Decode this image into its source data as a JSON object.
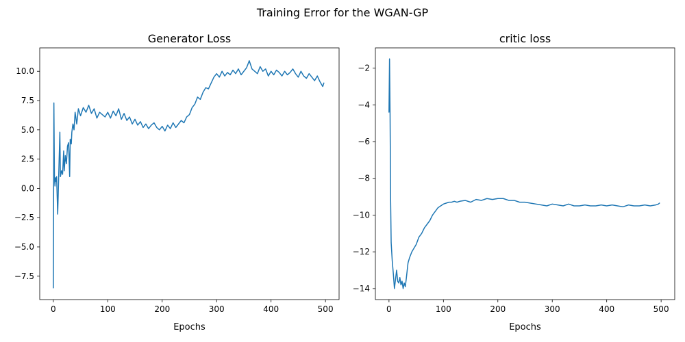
{
  "figure": {
    "suptitle": "Training Error for the WGAN-GP",
    "line_color": "#1f77b4"
  },
  "chart_data": [
    {
      "type": "line",
      "title": "Generator Loss",
      "xlabel": "Epochs",
      "ylabel": "",
      "xlim": [
        -25,
        525
      ],
      "ylim": [
        -9.5,
        12.0
      ],
      "xticks": [
        0,
        100,
        200,
        300,
        400,
        500
      ],
      "xtick_labels": [
        "0",
        "100",
        "200",
        "300",
        "400",
        "500"
      ],
      "yticks": [
        -7.5,
        -5.0,
        -2.5,
        0.0,
        2.5,
        5.0,
        7.5,
        10.0
      ],
      "ytick_labels": [
        "−7.5",
        "−5.0",
        "−2.5",
        "0.0",
        "2.5",
        "5.0",
        "7.5",
        "10.0"
      ],
      "grid": false,
      "legend": false,
      "series": [
        {
          "x": [
            0,
            1,
            2,
            3,
            4,
            5,
            6,
            8,
            10,
            12,
            13,
            15,
            17,
            19,
            20,
            22,
            24,
            26,
            28,
            30,
            31,
            33,
            34,
            36,
            38,
            40,
            43,
            46,
            50,
            55,
            60,
            65,
            70,
            75,
            80,
            85,
            90,
            95,
            100,
            105,
            110,
            115,
            120,
            125,
            130,
            135,
            140,
            145,
            150,
            155,
            160,
            165,
            170,
            175,
            180,
            185,
            190,
            195,
            200,
            205,
            210,
            215,
            220,
            225,
            230,
            235,
            240,
            245,
            250,
            255,
            260,
            265,
            270,
            275,
            280,
            285,
            290,
            295,
            300,
            305,
            310,
            315,
            320,
            325,
            330,
            335,
            340,
            345,
            350,
            355,
            360,
            365,
            370,
            375,
            380,
            385,
            390,
            395,
            400,
            405,
            410,
            415,
            420,
            425,
            430,
            435,
            440,
            445,
            450,
            455,
            460,
            465,
            470,
            475,
            480,
            485,
            490,
            495,
            497
          ],
          "y": [
            -8.5,
            7.3,
            1.0,
            0.2,
            0.9,
            0.6,
            1.0,
            -2.2,
            1.3,
            4.8,
            1.0,
            1.5,
            1.2,
            3.2,
            1.5,
            2.8,
            2.1,
            3.6,
            3.9,
            1.0,
            4.2,
            3.8,
            4.8,
            5.5,
            5.0,
            6.5,
            5.5,
            6.8,
            6.2,
            6.9,
            6.5,
            7.1,
            6.4,
            6.8,
            6.0,
            6.5,
            6.3,
            6.1,
            6.5,
            6.0,
            6.6,
            6.2,
            6.8,
            5.9,
            6.4,
            5.8,
            6.1,
            5.5,
            5.9,
            5.4,
            5.7,
            5.2,
            5.5,
            5.1,
            5.4,
            5.6,
            5.2,
            5.0,
            5.3,
            4.9,
            5.4,
            5.1,
            5.6,
            5.2,
            5.5,
            5.8,
            5.6,
            6.1,
            6.3,
            6.9,
            7.2,
            7.8,
            7.6,
            8.2,
            8.6,
            8.5,
            9.0,
            9.5,
            9.8,
            9.5,
            10.0,
            9.6,
            9.9,
            9.7,
            10.1,
            9.8,
            10.2,
            9.7,
            10.0,
            10.3,
            10.9,
            10.2,
            10.0,
            9.8,
            10.4,
            10.0,
            10.2,
            9.6,
            10.0,
            9.7,
            10.1,
            9.9,
            9.6,
            10.0,
            9.7,
            9.9,
            10.2,
            9.8,
            9.5,
            10.0,
            9.6,
            9.4,
            9.8,
            9.5,
            9.2,
            9.6,
            9.1,
            8.7,
            9.0
          ]
        }
      ]
    },
    {
      "type": "line",
      "title": "critic loss",
      "xlabel": "Epochs",
      "ylabel": "",
      "xlim": [
        -25,
        525
      ],
      "ylim": [
        -14.6,
        -0.9
      ],
      "xticks": [
        0,
        100,
        200,
        300,
        400,
        500
      ],
      "xtick_labels": [
        "0",
        "100",
        "200",
        "300",
        "400",
        "500"
      ],
      "yticks": [
        -14,
        -12,
        -10,
        -8,
        -6,
        -4,
        -2
      ],
      "ytick_labels": [
        "−14",
        "−12",
        "−10",
        "−8",
        "−6",
        "−4",
        "−2"
      ],
      "grid": false,
      "legend": false,
      "series": [
        {
          "x": [
            0,
            1,
            2,
            3,
            4,
            6,
            8,
            10,
            12,
            14,
            16,
            18,
            20,
            22,
            24,
            26,
            28,
            30,
            32,
            35,
            38,
            42,
            46,
            50,
            55,
            60,
            65,
            70,
            75,
            80,
            85,
            90,
            95,
            100,
            105,
            110,
            115,
            120,
            125,
            130,
            140,
            150,
            160,
            170,
            180,
            190,
            200,
            210,
            220,
            230,
            240,
            250,
            260,
            270,
            280,
            290,
            300,
            310,
            320,
            330,
            340,
            350,
            360,
            370,
            380,
            390,
            400,
            410,
            420,
            430,
            440,
            450,
            460,
            470,
            480,
            490,
            495,
            497
          ],
          "y": [
            -4.4,
            -1.5,
            -4.5,
            -9.2,
            -11.5,
            -12.5,
            -13.2,
            -14.0,
            -13.5,
            -13.0,
            -13.6,
            -13.7,
            -13.4,
            -13.8,
            -13.6,
            -14.0,
            -13.7,
            -13.9,
            -13.4,
            -12.6,
            -12.3,
            -12.0,
            -11.8,
            -11.6,
            -11.2,
            -11.0,
            -10.7,
            -10.5,
            -10.3,
            -10.0,
            -9.8,
            -9.6,
            -9.5,
            -9.4,
            -9.35,
            -9.3,
            -9.3,
            -9.25,
            -9.3,
            -9.25,
            -9.2,
            -9.3,
            -9.15,
            -9.2,
            -9.1,
            -9.15,
            -9.1,
            -9.1,
            -9.2,
            -9.2,
            -9.3,
            -9.3,
            -9.35,
            -9.4,
            -9.45,
            -9.5,
            -9.4,
            -9.45,
            -9.5,
            -9.4,
            -9.5,
            -9.5,
            -9.45,
            -9.5,
            -9.5,
            -9.45,
            -9.5,
            -9.45,
            -9.5,
            -9.55,
            -9.45,
            -9.5,
            -9.5,
            -9.45,
            -9.5,
            -9.45,
            -9.4,
            -9.35
          ]
        }
      ]
    }
  ]
}
